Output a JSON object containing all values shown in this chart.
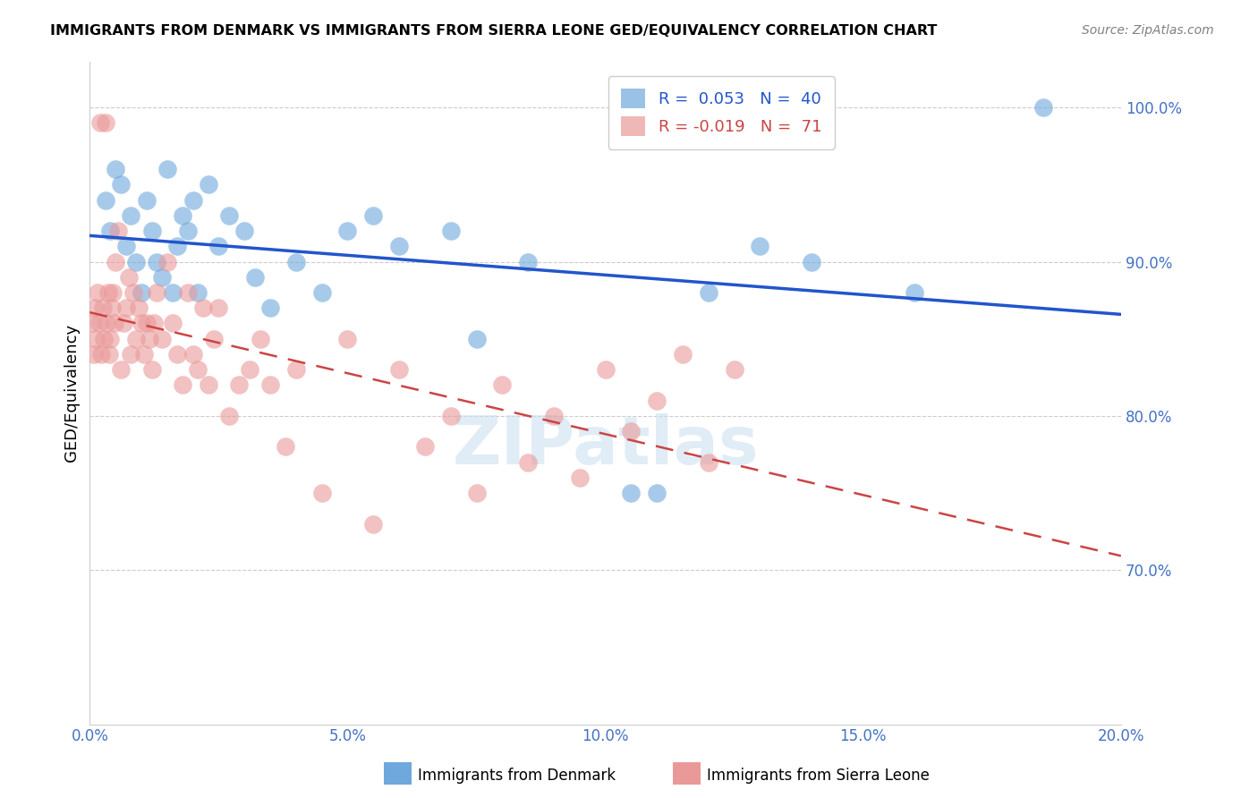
{
  "title": "IMMIGRANTS FROM DENMARK VS IMMIGRANTS FROM SIERRA LEONE GED/EQUIVALENCY CORRELATION CHART",
  "source": "Source: ZipAtlas.com",
  "ylabel": "GED/Equivalency",
  "xlabel_vals": [
    0.0,
    5.0,
    10.0,
    15.0,
    20.0
  ],
  "ylabel_vals": [
    70.0,
    80.0,
    90.0,
    100.0
  ],
  "xlim": [
    0.0,
    20.0
  ],
  "ylim": [
    60.0,
    103.0
  ],
  "R_denmark": 0.053,
  "N_denmark": 40,
  "R_sierra": -0.019,
  "N_sierra": 71,
  "color_denmark": "#6fa8dc",
  "color_sierra": "#ea9999",
  "color_denmark_line": "#2255cc",
  "color_sierra_line": "#cc4444",
  "color_axis_labels": "#4472c4",
  "denmark_x": [
    0.3,
    0.4,
    0.5,
    0.6,
    0.7,
    0.8,
    0.9,
    1.0,
    1.1,
    1.2,
    1.3,
    1.4,
    1.5,
    1.6,
    1.7,
    1.8,
    1.9,
    2.0,
    2.1,
    2.3,
    2.5,
    2.7,
    3.0,
    3.2,
    3.5,
    4.0,
    4.5,
    5.0,
    5.5,
    6.0,
    7.0,
    7.5,
    8.5,
    10.5,
    11.0,
    12.0,
    13.0,
    14.0,
    16.0,
    18.5
  ],
  "denmark_y": [
    94,
    92,
    96,
    95,
    91,
    93,
    90,
    88,
    94,
    92,
    90,
    89,
    96,
    88,
    91,
    93,
    92,
    94,
    88,
    95,
    91,
    93,
    92,
    89,
    87,
    90,
    88,
    92,
    93,
    91,
    92,
    85,
    90,
    75,
    75,
    88,
    91,
    90,
    88,
    100
  ],
  "sierra_x": [
    0.05,
    0.08,
    0.1,
    0.12,
    0.15,
    0.18,
    0.2,
    0.22,
    0.25,
    0.28,
    0.3,
    0.32,
    0.35,
    0.38,
    0.4,
    0.42,
    0.45,
    0.48,
    0.5,
    0.55,
    0.6,
    0.65,
    0.7,
    0.75,
    0.8,
    0.85,
    0.9,
    0.95,
    1.0,
    1.05,
    1.1,
    1.15,
    1.2,
    1.25,
    1.3,
    1.4,
    1.5,
    1.6,
    1.7,
    1.8,
    1.9,
    2.0,
    2.1,
    2.2,
    2.3,
    2.4,
    2.5,
    2.7,
    2.9,
    3.1,
    3.3,
    3.5,
    3.8,
    4.0,
    4.5,
    5.0,
    5.5,
    6.0,
    6.5,
    7.0,
    7.5,
    8.0,
    8.5,
    9.0,
    9.5,
    10.0,
    10.5,
    11.0,
    11.5,
    12.0,
    12.5
  ],
  "sierra_y": [
    86,
    84,
    87,
    85,
    88,
    86,
    99,
    84,
    87,
    85,
    99,
    86,
    88,
    84,
    85,
    87,
    88,
    86,
    90,
    92,
    83,
    86,
    87,
    89,
    84,
    88,
    85,
    87,
    86,
    84,
    86,
    85,
    83,
    86,
    88,
    85,
    90,
    86,
    84,
    82,
    88,
    84,
    83,
    87,
    82,
    85,
    87,
    80,
    82,
    83,
    85,
    82,
    78,
    83,
    75,
    85,
    73,
    83,
    78,
    80,
    75,
    82,
    77,
    80,
    76,
    83,
    79,
    81,
    84,
    77,
    83
  ]
}
